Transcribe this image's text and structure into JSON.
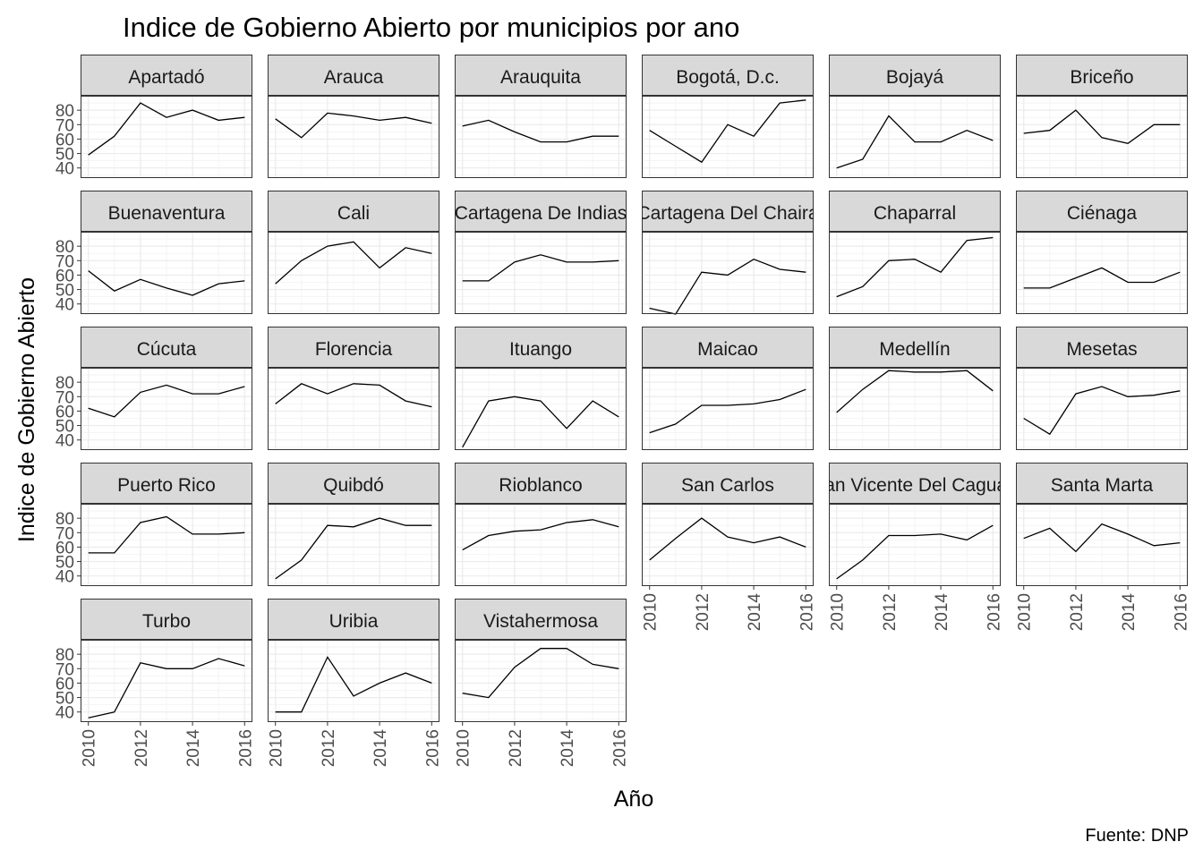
{
  "chart_data": {
    "type": "line",
    "title": "Indice de Gobierno Abierto por municipios por ano",
    "xlabel": "Año",
    "ylabel": "Indice de Gobierno Abierto",
    "caption": "Fuente: DNP",
    "x": [
      2010,
      2011,
      2012,
      2013,
      2014,
      2015,
      2016
    ],
    "x_ticks": [
      "2010",
      "2012",
      "2014",
      "2016"
    ],
    "y_ticks": [
      "40",
      "50",
      "60",
      "70",
      "80"
    ],
    "xlim": [
      2009.7,
      2016.3
    ],
    "ylim": [
      33,
      90
    ],
    "grid": true,
    "line_color": "#000000",
    "strip_color": "#d9d9d9",
    "panels": [
      {
        "name": "Apartadó",
        "values": [
          49,
          62,
          85,
          75,
          80,
          73,
          75
        ]
      },
      {
        "name": "Arauca",
        "values": [
          74,
          61,
          78,
          76,
          73,
          75,
          71
        ]
      },
      {
        "name": "Arauquita",
        "values": [
          69,
          73,
          65,
          58,
          58,
          62,
          62
        ]
      },
      {
        "name": "Bogotá, D.c.",
        "values": [
          66,
          55,
          44,
          70,
          62,
          85,
          87
        ]
      },
      {
        "name": "Bojayá",
        "values": [
          40,
          46,
          76,
          58,
          58,
          66,
          59
        ]
      },
      {
        "name": "Briceño",
        "values": [
          64,
          66,
          80,
          61,
          57,
          70,
          70
        ]
      },
      {
        "name": "Buenaventura",
        "values": [
          63,
          49,
          57,
          51,
          46,
          54,
          56
        ]
      },
      {
        "name": "Cali",
        "values": [
          54,
          70,
          80,
          83,
          65,
          79,
          75
        ]
      },
      {
        "name": "Cartagena De Indias",
        "values": [
          56,
          56,
          69,
          74,
          69,
          69,
          70
        ]
      },
      {
        "name": "Cartagena Del Chaira",
        "values": [
          37,
          33,
          62,
          60,
          71,
          64,
          62
        ]
      },
      {
        "name": "Chaparral",
        "values": [
          45,
          52,
          70,
          71,
          62,
          84,
          86
        ]
      },
      {
        "name": "Ciénaga",
        "values": [
          51,
          51,
          58,
          65,
          55,
          55,
          62
        ]
      },
      {
        "name": "Cúcuta",
        "values": [
          62,
          56,
          73,
          78,
          72,
          72,
          77
        ]
      },
      {
        "name": "Florencia",
        "values": [
          65,
          79,
          72,
          79,
          78,
          67,
          63
        ]
      },
      {
        "name": "Ituango",
        "values": [
          35,
          67,
          70,
          67,
          48,
          67,
          56
        ]
      },
      {
        "name": "Maicao",
        "values": [
          45,
          51,
          64,
          64,
          65,
          68,
          75
        ]
      },
      {
        "name": "Medellín",
        "values": [
          59,
          75,
          88,
          87,
          87,
          88,
          74
        ]
      },
      {
        "name": "Mesetas",
        "values": [
          55,
          44,
          72,
          77,
          70,
          71,
          74
        ]
      },
      {
        "name": "Puerto Rico",
        "values": [
          56,
          56,
          77,
          81,
          69,
          69,
          70
        ]
      },
      {
        "name": "Quibdó",
        "values": [
          38,
          51,
          75,
          74,
          80,
          75,
          75
        ]
      },
      {
        "name": "Rioblanco",
        "values": [
          58,
          68,
          71,
          72,
          77,
          79,
          74
        ]
      },
      {
        "name": "San Carlos",
        "values": [
          51,
          66,
          80,
          67,
          63,
          67,
          60
        ]
      },
      {
        "name": "San Vicente Del Caguan",
        "values": [
          38,
          51,
          68,
          68,
          69,
          65,
          75
        ]
      },
      {
        "name": "Santa Marta",
        "values": [
          66,
          73,
          57,
          76,
          69,
          61,
          63
        ]
      },
      {
        "name": "Turbo",
        "values": [
          36,
          40,
          74,
          70,
          70,
          77,
          72
        ]
      },
      {
        "name": "Uribia",
        "values": [
          40,
          40,
          78,
          51,
          60,
          67,
          60
        ]
      },
      {
        "name": "Vistahermosa",
        "values": [
          53,
          50,
          71,
          84,
          84,
          73,
          70
        ]
      }
    ]
  }
}
